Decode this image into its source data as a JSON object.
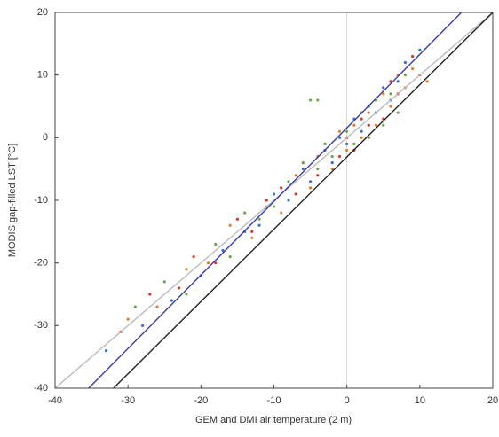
{
  "chart_data": {
    "type": "scatter",
    "x_label": "GEM and DMI air temperature (2 m)",
    "y_label": "MODIS gap-filled LST [°C]",
    "xlim": [
      -40,
      20
    ],
    "ylim": [
      -40,
      20
    ],
    "xticks": [
      -40,
      -30,
      -20,
      -10,
      0,
      10,
      20
    ],
    "yticks": [
      -40,
      -30,
      -20,
      -10,
      0,
      10,
      20
    ],
    "series": [
      {
        "color": "#3b6fd6",
        "x": [
          -33,
          -28,
          -24,
          -20,
          -17,
          -14,
          -12,
          -10,
          -8,
          -6,
          -5,
          -3,
          -2,
          -1,
          0,
          1,
          2,
          3,
          4,
          5,
          6,
          7,
          8,
          10
        ],
        "values": [
          -34,
          -30,
          -26,
          -22,
          -18,
          -15,
          -14,
          -9,
          -10,
          -5,
          -7,
          -2,
          -4,
          0,
          -1,
          3,
          1,
          5,
          4,
          8,
          6,
          9,
          12,
          14
        ]
      },
      {
        "color": "#e0802a",
        "x": [
          -30,
          -26,
          -22,
          -19,
          -16,
          -13,
          -11,
          -9,
          -7,
          -5,
          -4,
          -2,
          -1,
          0,
          1,
          2,
          3,
          4,
          5,
          6,
          7,
          8,
          9,
          11
        ],
        "values": [
          -29,
          -27,
          -21,
          -20,
          -14,
          -16,
          -11,
          -12,
          -6,
          -8,
          -3,
          -5,
          1,
          -2,
          2,
          0,
          4,
          2,
          7,
          5,
          10,
          8,
          11,
          9
        ]
      },
      {
        "color": "#d93a2b",
        "x": [
          -31,
          -27,
          -23,
          -21,
          -18,
          -15,
          -13,
          -11,
          -9,
          -7,
          -6,
          -4,
          -3,
          -1,
          0,
          1,
          2,
          3,
          4,
          5,
          6,
          7,
          9,
          10
        ],
        "values": [
          -31,
          -25,
          -24,
          -19,
          -20,
          -13,
          -15,
          -10,
          -8,
          -9,
          -4,
          -6,
          -1,
          -3,
          0,
          -2,
          3,
          2,
          6,
          3,
          9,
          7,
          13,
          10
        ]
      },
      {
        "color": "#6aa84f",
        "x": [
          -29,
          -25,
          -22,
          -18,
          -16,
          -14,
          -12,
          -10,
          -8,
          -6,
          -4,
          -3,
          -2,
          0,
          1,
          2,
          3,
          4,
          5,
          6,
          7,
          8,
          -5,
          -4
        ],
        "values": [
          -27,
          -23,
          -25,
          -17,
          -19,
          -12,
          -13,
          -11,
          -7,
          -4,
          -5,
          -1,
          -3,
          1,
          -1,
          4,
          0,
          6,
          2,
          7,
          4,
          10,
          6,
          6
        ]
      }
    ],
    "lines": [
      {
        "color": "#bbbbbb",
        "x": [
          -40,
          20
        ],
        "values": [
          -40,
          20
        ]
      },
      {
        "color": "#3a3aa8",
        "x": [
          -35.4,
          15.7
        ],
        "values": [
          -40,
          20
        ]
      },
      {
        "color": "#222222",
        "x": [
          -32,
          20
        ],
        "values": [
          -40,
          20
        ]
      }
    ],
    "zero_line": 0
  }
}
